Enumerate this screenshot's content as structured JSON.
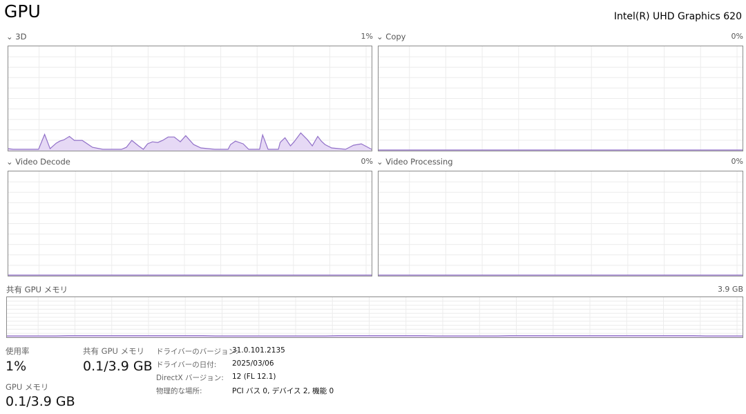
{
  "header": {
    "title": "GPU",
    "adapter": "Intel(R) UHD Graphics 620"
  },
  "engines": [
    {
      "label": "3D",
      "value": "1%"
    },
    {
      "label": "Copy",
      "value": "0%"
    },
    {
      "label": "Video Decode",
      "value": "0%"
    },
    {
      "label": "Video Processing",
      "value": "0%"
    }
  ],
  "shared_memory": {
    "label": "共有 GPU メモリ",
    "max": "3.9 GB"
  },
  "stats": {
    "usage_label": "使用率",
    "usage_value": "1%",
    "gpu_mem_label": "GPU メモリ",
    "gpu_mem_value": "0.1/3.9 GB",
    "shared_label": "共有 GPU メモリ",
    "shared_value": "0.1/3.9 GB"
  },
  "details": [
    {
      "label": "ドライバーのバージョン:",
      "value": "31.0.101.2135"
    },
    {
      "label": "ドライバーの日付:",
      "value": "2025/03/06"
    },
    {
      "label": "DirectX バージョン:",
      "value": "12 (FL 12.1)"
    },
    {
      "label": "物理的な場所:",
      "value": "PCI バス 0, デバイス 2, 機能 0"
    }
  ],
  "colors": {
    "line": "#9170c8",
    "fill": "#e6d9f5",
    "grid": "#ececec",
    "border": "#8a8a8a"
  },
  "chart_data": [
    {
      "type": "area",
      "name": "3D",
      "xlim": [
        0,
        60
      ],
      "ylim": [
        0,
        100
      ],
      "grid": true,
      "points": [
        [
          0,
          1.3
        ],
        [
          0.8,
          0.7
        ],
        [
          1.6,
          0.7
        ],
        [
          2.7,
          0.7
        ],
        [
          5,
          0.7
        ],
        [
          6,
          15.2
        ],
        [
          6.9,
          1.3
        ],
        [
          7.9,
          6.6
        ],
        [
          8.5,
          8.6
        ],
        [
          9.2,
          9.9
        ],
        [
          10.1,
          13.2
        ],
        [
          10.9,
          9.3
        ],
        [
          12.2,
          9.3
        ],
        [
          13.9,
          2.6
        ],
        [
          15.6,
          0.7
        ],
        [
          18.7,
          0.7
        ],
        [
          19.5,
          2.6
        ],
        [
          20.4,
          9.3
        ],
        [
          21.5,
          4
        ],
        [
          22.3,
          0.7
        ],
        [
          23,
          6
        ],
        [
          23.8,
          7.9
        ],
        [
          24.7,
          7.3
        ],
        [
          25.5,
          9.3
        ],
        [
          26.4,
          12.6
        ],
        [
          27.4,
          12.6
        ],
        [
          28.4,
          7.9
        ],
        [
          29.3,
          13.9
        ],
        [
          30.6,
          5.3
        ],
        [
          31.8,
          2
        ],
        [
          34.1,
          0.7
        ],
        [
          36.3,
          0.7
        ],
        [
          36.7,
          5.3
        ],
        [
          37.5,
          8.6
        ],
        [
          38.8,
          6
        ],
        [
          39.7,
          0.7
        ],
        [
          41.5,
          0.7
        ],
        [
          42,
          14.6
        ],
        [
          42.9,
          0.7
        ],
        [
          44.6,
          0.7
        ],
        [
          44.9,
          7.3
        ],
        [
          45.7,
          11.9
        ],
        [
          46.6,
          4
        ],
        [
          47.2,
          7.9
        ],
        [
          48.3,
          16.6
        ],
        [
          49.4,
          9.9
        ],
        [
          50.2,
          4
        ],
        [
          51.1,
          13.2
        ],
        [
          51.7,
          8.6
        ],
        [
          52.3,
          5.3
        ],
        [
          53.4,
          2
        ],
        [
          55.7,
          0.7
        ],
        [
          57,
          4.6
        ],
        [
          58.3,
          6
        ],
        [
          60,
          0.7
        ]
      ]
    },
    {
      "type": "area",
      "name": "Copy",
      "xlim": [
        0,
        60
      ],
      "ylim": [
        0,
        100
      ],
      "points": [
        [
          0,
          0
        ],
        [
          60,
          0
        ]
      ]
    },
    {
      "type": "area",
      "name": "Video Decode",
      "xlim": [
        0,
        60
      ],
      "ylim": [
        0,
        100
      ],
      "points": [
        [
          0,
          0
        ],
        [
          60,
          0
        ]
      ]
    },
    {
      "type": "area",
      "name": "Video Processing",
      "xlim": [
        0,
        60
      ],
      "ylim": [
        0,
        100
      ],
      "points": [
        [
          0,
          0
        ],
        [
          60,
          0
        ]
      ]
    },
    {
      "type": "area",
      "name": "共有 GPU メモリ",
      "xlim": [
        0,
        60
      ],
      "ylim": [
        0,
        3.9
      ],
      "points": [
        [
          0,
          0.07
        ],
        [
          4,
          0.07
        ],
        [
          5,
          0.1
        ],
        [
          16,
          0.1
        ],
        [
          17,
          0.07
        ],
        [
          26,
          0.07
        ],
        [
          27,
          0.1
        ],
        [
          34,
          0.1
        ],
        [
          35,
          0.07
        ],
        [
          40,
          0.07
        ],
        [
          41,
          0.1
        ],
        [
          56,
          0.1
        ],
        [
          57,
          0.07
        ],
        [
          60,
          0.07
        ]
      ]
    }
  ]
}
